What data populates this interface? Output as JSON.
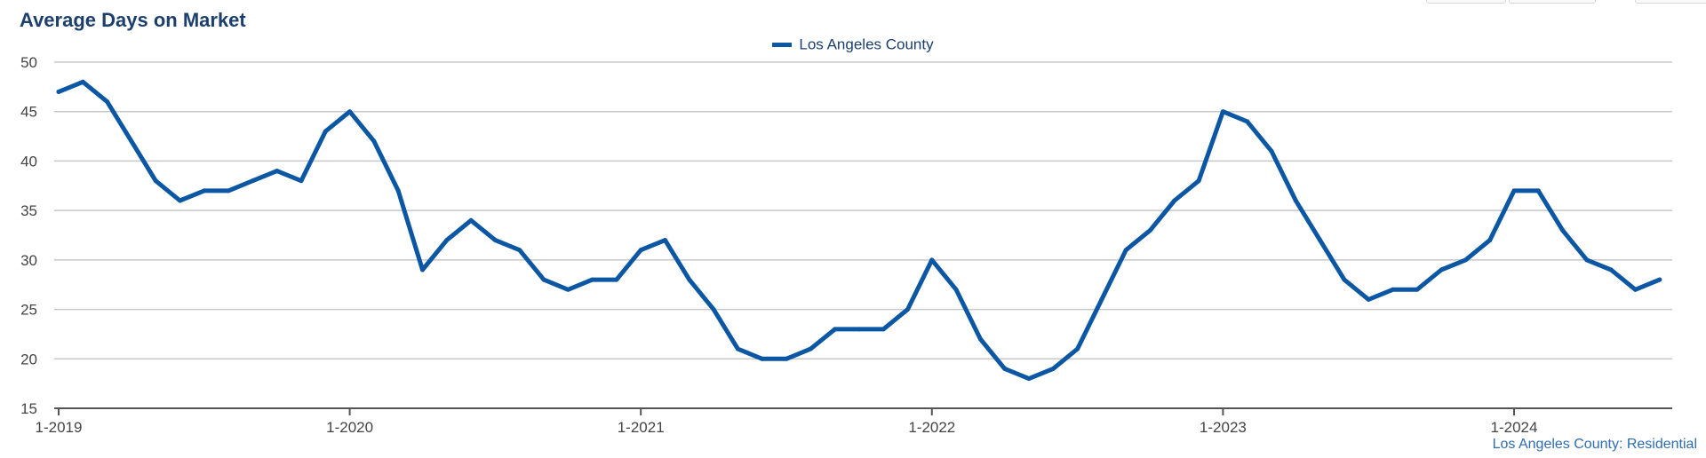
{
  "chart_data": {
    "type": "line",
    "title": "Average Days on Market",
    "xlabel": "",
    "ylabel": "",
    "ylim": [
      15,
      50
    ],
    "yticks": [
      15,
      20,
      25,
      30,
      35,
      40,
      45,
      50
    ],
    "x_tick_labels": [
      "1-2019",
      "1-2020",
      "1-2021",
      "1-2022",
      "1-2023",
      "1-2024"
    ],
    "x_tick_month_index": [
      0,
      12,
      24,
      36,
      48,
      60
    ],
    "legend_position": "top-center",
    "grid": true,
    "series": [
      {
        "name": "Los Angeles County",
        "color": "#0c57a4",
        "values": [
          47,
          48,
          46,
          42,
          38,
          36,
          37,
          37,
          38,
          39,
          38,
          43,
          45,
          42,
          37,
          29,
          32,
          34,
          32,
          31,
          28,
          27,
          28,
          28,
          31,
          32,
          28,
          25,
          21,
          20,
          20,
          21,
          23,
          23,
          23,
          25,
          30,
          27,
          22,
          19,
          18,
          19,
          21,
          26,
          31,
          33,
          36,
          38,
          45,
          44,
          41,
          36,
          32,
          28,
          26,
          27,
          27,
          29,
          30,
          32,
          37,
          37,
          33,
          30,
          29,
          27,
          28
        ]
      }
    ],
    "source_note": "Los Angeles County: Residential"
  }
}
